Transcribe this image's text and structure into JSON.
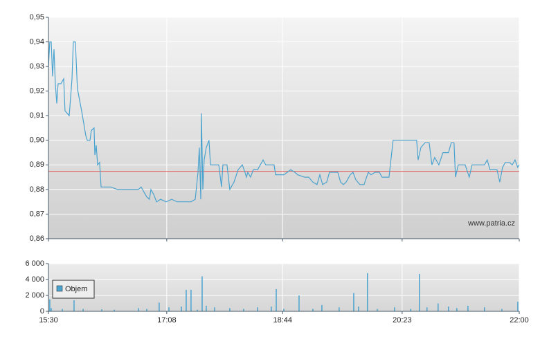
{
  "chart_data": [
    {
      "type": "line",
      "color": "#4aa3cf",
      "x": [
        930,
        931.1,
        932.3,
        933.4,
        934.6,
        935.7,
        936.9,
        938,
        940.3,
        942.6,
        943.7,
        947.2,
        949.5,
        950.6,
        952.3,
        954,
        957.5,
        960.9,
        962.1,
        964.4,
        965.5,
        967.8,
        968.4,
        969.6,
        970.7,
        972.4,
        973.6,
        975.9,
        981.6,
        987.3,
        1004.5,
        1006.8,
        1009.1,
        1011.4,
        1013.7,
        1014.9,
        1017.2,
        1019.5,
        1022.9,
        1027.5,
        1032.1,
        1036.7,
        1042.4,
        1048.1,
        1051.6,
        1053.9,
        1055,
        1056.2,
        1056.7,
        1057.9,
        1059,
        1060.7,
        1063,
        1064.2,
        1067.6,
        1071.1,
        1073.4,
        1074.5,
        1077.9,
        1080.2,
        1083.7,
        1087.1,
        1090.6,
        1092.8,
        1094,
        1095.1,
        1097.4,
        1099.7,
        1103.2,
        1105.5,
        1107.8,
        1110,
        1113.5,
        1116.9,
        1118.1,
        1125,
        1130.7,
        1134.1,
        1136.4,
        1142.2,
        1145.6,
        1149,
        1152.5,
        1154.8,
        1157.1,
        1160.5,
        1162.8,
        1165.1,
        1169.7,
        1172,
        1174.3,
        1176.6,
        1180,
        1182.3,
        1184.6,
        1188,
        1191.5,
        1194.9,
        1197.2,
        1200.6,
        1204.1,
        1206.4,
        1212.1,
        1215.5,
        1222.4,
        1228.2,
        1235,
        1236.2,
        1238.5,
        1241.9,
        1245.4,
        1247.7,
        1250,
        1253.4,
        1256.8,
        1261.4,
        1263.7,
        1266,
        1267.2,
        1269.5,
        1275.2,
        1278.6,
        1280.9,
        1285.5,
        1291.2,
        1293.5,
        1295.8,
        1301.6,
        1303.9,
        1306.2,
        1308.4,
        1311.9,
        1314.2,
        1316.5,
        1318.8,
        1320
      ],
      "values": [
        0.93,
        0.94,
        0.94,
        0.926,
        0.937,
        0.923,
        0.915,
        0.923,
        0.923,
        0.925,
        0.912,
        0.91,
        0.925,
        0.94,
        0.94,
        0.921,
        0.912,
        0.902,
        0.9,
        0.9,
        0.904,
        0.905,
        0.894,
        0.898,
        0.89,
        0.891,
        0.881,
        0.881,
        0.881,
        0.88,
        0.88,
        0.881,
        0.879,
        0.877,
        0.876,
        0.88,
        0.878,
        0.875,
        0.876,
        0.875,
        0.876,
        0.875,
        0.875,
        0.875,
        0.876,
        0.887,
        0.897,
        0.876,
        0.911,
        0.88,
        0.892,
        0.897,
        0.9,
        0.89,
        0.89,
        0.89,
        0.881,
        0.89,
        0.89,
        0.88,
        0.883,
        0.888,
        0.89,
        0.887,
        0.885,
        0.887,
        0.885,
        0.888,
        0.888,
        0.89,
        0.892,
        0.89,
        0.89,
        0.89,
        0.886,
        0.886,
        0.888,
        0.887,
        0.886,
        0.885,
        0.885,
        0.883,
        0.882,
        0.886,
        0.882,
        0.883,
        0.887,
        0.887,
        0.887,
        0.883,
        0.882,
        0.883,
        0.886,
        0.887,
        0.884,
        0.882,
        0.882,
        0.887,
        0.886,
        0.887,
        0.887,
        0.885,
        0.885,
        0.9,
        0.9,
        0.9,
        0.9,
        0.892,
        0.897,
        0.899,
        0.899,
        0.89,
        0.893,
        0.89,
        0.895,
        0.895,
        0.899,
        0.899,
        0.885,
        0.89,
        0.89,
        0.885,
        0.89,
        0.89,
        0.89,
        0.892,
        0.888,
        0.888,
        0.883,
        0.889,
        0.891,
        0.891,
        0.89,
        0.892,
        0.889,
        0.89
      ],
      "reference_line": {
        "value": 0.8874,
        "color": "#e05a5a"
      },
      "ylim": [
        0.86,
        0.95
      ],
      "yticks": [
        {
          "value": 0.86,
          "label": "0,86"
        },
        {
          "value": 0.87,
          "label": "0,87"
        },
        {
          "value": 0.88,
          "label": "0,88"
        },
        {
          "value": 0.89,
          "label": "0,89"
        },
        {
          "value": 0.9,
          "label": "0,90"
        },
        {
          "value": 0.91,
          "label": "0,91"
        },
        {
          "value": 0.92,
          "label": "0,92"
        },
        {
          "value": 0.93,
          "label": "0,93"
        },
        {
          "value": 0.94,
          "label": "0,94"
        },
        {
          "value": 0.95,
          "label": "0,95"
        }
      ],
      "xlim": [
        930,
        1320
      ],
      "watermark": "www.patria.cz",
      "grid": true
    },
    {
      "type": "bar",
      "color": "#4aa3cf",
      "legend": "Objem",
      "x": [
        931.1,
        932.3,
        941.5,
        951.2,
        958.7,
        974.2,
        984.5,
        1004.5,
        1011.4,
        1021.7,
        1029.8,
        1040.1,
        1044.1,
        1048.1,
        1053.3,
        1057.3,
        1060.7,
        1067.6,
        1080.2,
        1091.7,
        1103.2,
        1114.6,
        1118.7,
        1125,
        1137.6,
        1149,
        1156.5,
        1170.8,
        1182.9,
        1186.9,
        1194.3,
        1202.4,
        1216.7,
        1229.9,
        1237.3,
        1243.6,
        1252.8,
        1261.4,
        1268.3,
        1277.5,
        1291.2,
        1305.6,
        1318.8
      ],
      "values": [
        1500,
        400,
        300,
        1400,
        300,
        250,
        200,
        400,
        300,
        1100,
        500,
        600,
        2700,
        2700,
        200,
        4400,
        700,
        500,
        400,
        300,
        500,
        600,
        2800,
        300,
        2000,
        300,
        800,
        500,
        2300,
        600,
        4800,
        300,
        500,
        300,
        4700,
        500,
        1000,
        600,
        400,
        700,
        500,
        300,
        1200
      ],
      "ylim": [
        0,
        6000
      ],
      "yticks": [
        0,
        {
          "value": 2000,
          "label": "2 000"
        },
        {
          "value": 4000,
          "label": "4 000"
        },
        {
          "value": 6000,
          "label": "6 000"
        }
      ],
      "xlim": [
        930,
        1320
      ],
      "xticks": [
        {
          "value": 930,
          "label": "15:30"
        },
        {
          "value": 1028,
          "label": "17:08"
        },
        {
          "value": 1124,
          "label": "18:44"
        },
        {
          "value": 1223,
          "label": "20:23"
        },
        {
          "value": 1320,
          "label": "22:00"
        }
      ],
      "grid": true
    }
  ]
}
